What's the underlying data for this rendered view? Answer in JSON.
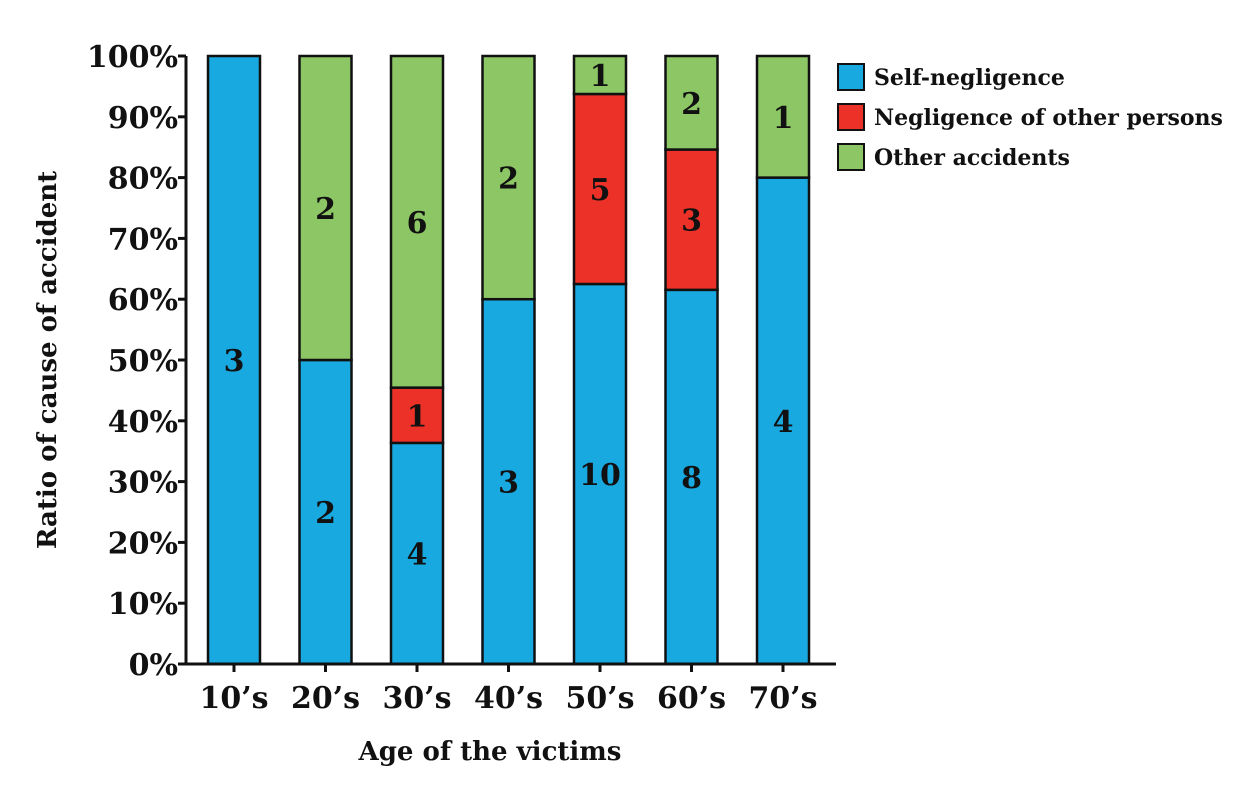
{
  "chart_data": {
    "type": "bar",
    "stacked": true,
    "normalized": true,
    "xlabel": "Age of the victims",
    "ylabel": "Ratio of cause of accident",
    "categories": [
      "10’s",
      "20’s",
      "30’s",
      "40’s",
      "50’s",
      "60’s",
      "70’s"
    ],
    "y_ticks": [
      "0%",
      "10%",
      "20%",
      "30%",
      "40%",
      "50%",
      "60%",
      "70%",
      "80%",
      "90%",
      "100%"
    ],
    "ylim": [
      0,
      100
    ],
    "series": [
      {
        "name": "Self-negligence",
        "color": "#18a9e1",
        "values": [
          3,
          2,
          4,
          3,
          10,
          8,
          4
        ],
        "labels": [
          "3",
          "2",
          "4",
          "3",
          "10",
          "8",
          "4"
        ]
      },
      {
        "name": "Negligence of other persons",
        "color": "#ec3228",
        "values": [
          0,
          0,
          1,
          0,
          5,
          3,
          0
        ],
        "labels": [
          "",
          "",
          "1",
          "",
          "5",
          "3",
          ""
        ]
      },
      {
        "name": "Other accidents",
        "color": "#8cc665",
        "values": [
          0,
          2,
          6,
          2,
          1,
          2,
          1
        ],
        "labels": [
          "",
          "2",
          "6",
          "2",
          "1",
          "2",
          "1"
        ]
      }
    ],
    "legend_position": "top-right",
    "grid": false
  }
}
